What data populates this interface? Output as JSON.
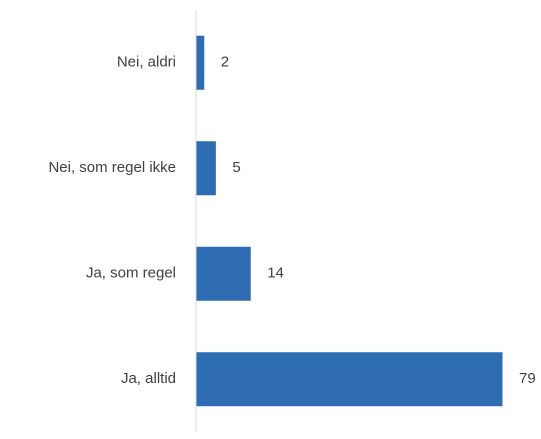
{
  "chart_data": {
    "type": "bar",
    "orientation": "horizontal",
    "categories": [
      "Nei, aldri",
      "Nei, som regel ikke",
      "Ja, som regel",
      "Ja, alltid"
    ],
    "values": [
      2,
      5,
      14,
      79
    ],
    "data_labels": [
      "2",
      "5",
      "14",
      "79"
    ],
    "title": "",
    "xlabel": "",
    "ylabel": "",
    "xlim": [
      0,
      79
    ],
    "grid": false,
    "legend": "none",
    "bar_color": "#2E6DB4",
    "axis_color": "#D9D9D9",
    "text_color": "#404040"
  }
}
